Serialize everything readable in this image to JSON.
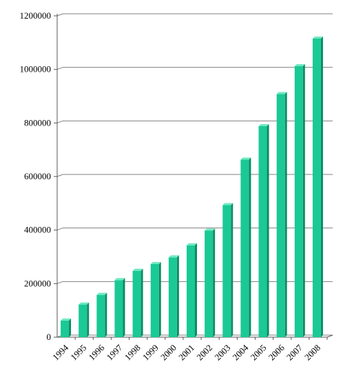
{
  "chart_data": {
    "type": "bar",
    "title": "",
    "xlabel": "",
    "ylabel": "",
    "categories": [
      "1994",
      "1995",
      "1996",
      "1997",
      "1998",
      "1999",
      "2000",
      "2001",
      "2002",
      "2003",
      "2004",
      "2005",
      "2006",
      "2007",
      "2008"
    ],
    "values": [
      62000,
      122000,
      158000,
      213000,
      248000,
      273000,
      298000,
      343000,
      398000,
      493000,
      663000,
      788000,
      908000,
      1012000,
      1115000
    ],
    "ylim": [
      0,
      1200000
    ],
    "yticks": [
      0,
      200000,
      400000,
      600000,
      800000,
      1000000,
      1200000
    ],
    "ytick_labels": [
      "0",
      "200000",
      "400000",
      "600000",
      "800000",
      "1000000",
      "1200000"
    ],
    "grid": true,
    "legend": "none",
    "colors": {
      "bar_front": "#1ac996",
      "bar_side": "#0e8a63",
      "bar_top": "#6fe9c1",
      "grid": "#7f7f7f",
      "axis": "#555555"
    }
  }
}
